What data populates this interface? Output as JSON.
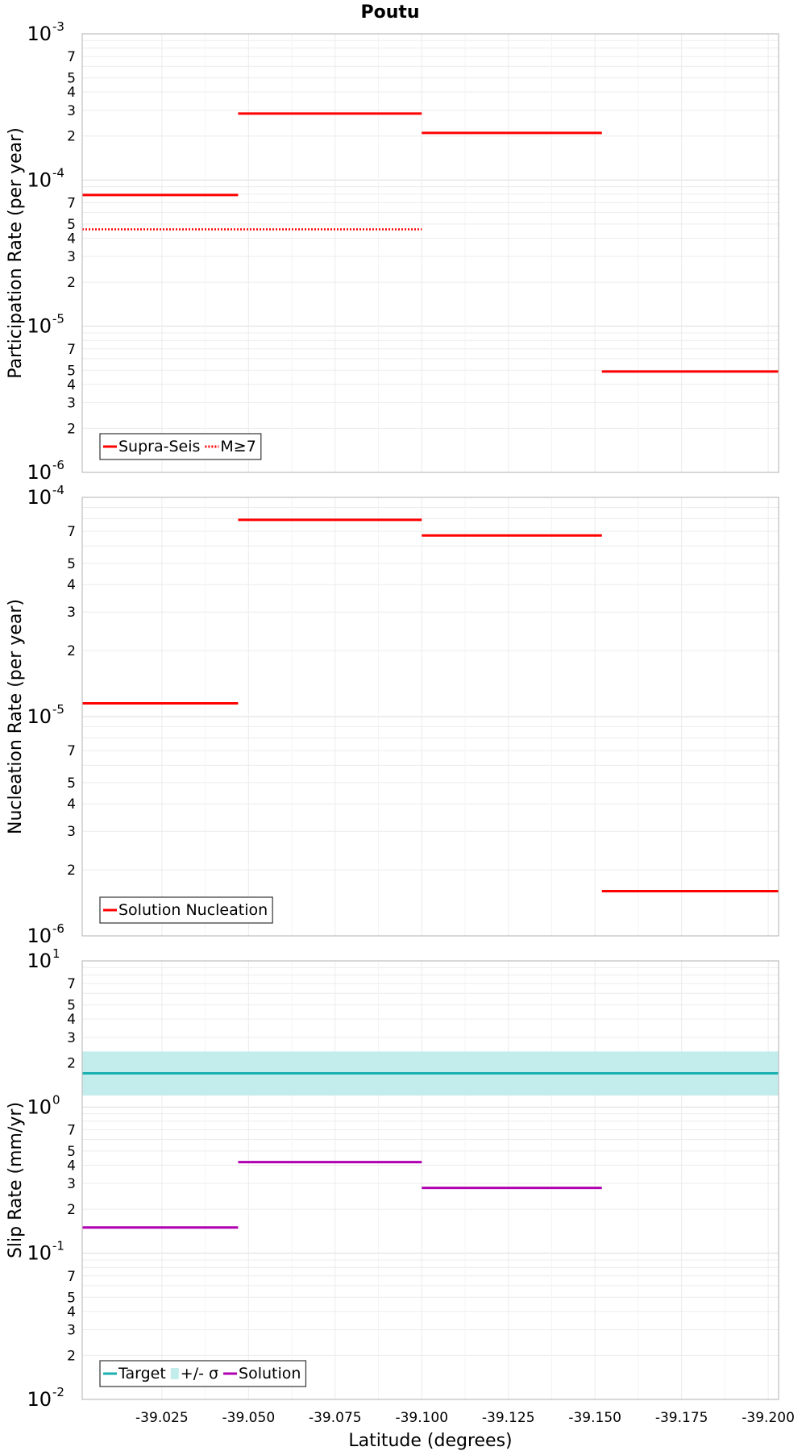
{
  "chart_data": [
    {
      "type": "line",
      "title": "Poutu",
      "ylabel": "Participation Rate (per year)",
      "yscale": "log",
      "ylim": [
        1e-06,
        0.001
      ],
      "xlim": [
        -39.002,
        -39.203
      ],
      "grid": true,
      "legend_placement": "bottom-left",
      "series": [
        {
          "name": "Supra-Seis",
          "color": "#ff0000",
          "style": "solid",
          "segments": [
            {
              "x": [
                -39.002,
                -39.047
              ],
              "y": 7.9e-05
            },
            {
              "x": [
                -39.047,
                -39.1
              ],
              "y": 0.000285
            },
            {
              "x": [
                -39.1,
                -39.152
              ],
              "y": 0.00021
            },
            {
              "x": [
                -39.152,
                -39.203
              ],
              "y": 4.9e-06
            }
          ]
        },
        {
          "name": "M≥7",
          "color": "#ff0000",
          "style": "dotted",
          "segments": [
            {
              "x": [
                -39.002,
                -39.1
              ],
              "y": 4.6e-05
            }
          ]
        }
      ]
    },
    {
      "type": "line",
      "ylabel": "Nucleation Rate (per year)",
      "yscale": "log",
      "ylim": [
        1e-06,
        0.0001
      ],
      "xlim": [
        -39.002,
        -39.203
      ],
      "grid": true,
      "legend_placement": "bottom-left",
      "series": [
        {
          "name": "Solution Nucleation",
          "color": "#ff0000",
          "style": "solid",
          "segments": [
            {
              "x": [
                -39.002,
                -39.047
              ],
              "y": 1.15e-05
            },
            {
              "x": [
                -39.047,
                -39.1
              ],
              "y": 7.9e-05
            },
            {
              "x": [
                -39.1,
                -39.152
              ],
              "y": 6.7e-05
            },
            {
              "x": [
                -39.152,
                -39.203
              ],
              "y": 1.6e-06
            }
          ]
        }
      ]
    },
    {
      "type": "line",
      "ylabel": "Slip Rate (mm/yr)",
      "xlabel": "Latitude (degrees)",
      "yscale": "log",
      "ylim": [
        0.01,
        10
      ],
      "xlim": [
        -39.002,
        -39.203
      ],
      "xticks": [
        -39.025,
        -39.05,
        -39.075,
        -39.1,
        -39.125,
        -39.15,
        -39.175,
        -39.2
      ],
      "xticklabels": [
        "-39.025",
        "-39.050",
        "-39.075",
        "-39.100",
        "-39.125",
        "-39.150",
        "-39.175",
        "-39.200"
      ],
      "grid": true,
      "legend_placement": "bottom-left",
      "series": [
        {
          "name": "Target",
          "color": "#1ab0b0",
          "style": "solid",
          "segments": [
            {
              "x": [
                -39.002,
                -39.203
              ],
              "y": 1.7
            }
          ]
        },
        {
          "name": "+/- σ",
          "color": "#c3ecec",
          "style": "band",
          "band": {
            "x": [
              -39.002,
              -39.203
            ],
            "low": 1.2,
            "high": 2.4
          }
        },
        {
          "name": "Solution",
          "color": "#b000b0",
          "style": "solid",
          "segments": [
            {
              "x": [
                -39.002,
                -39.047
              ],
              "y": 0.15
            },
            {
              "x": [
                -39.047,
                -39.1
              ],
              "y": 0.42
            },
            {
              "x": [
                -39.1,
                -39.152
              ],
              "y": 0.28
            }
          ]
        }
      ]
    }
  ]
}
